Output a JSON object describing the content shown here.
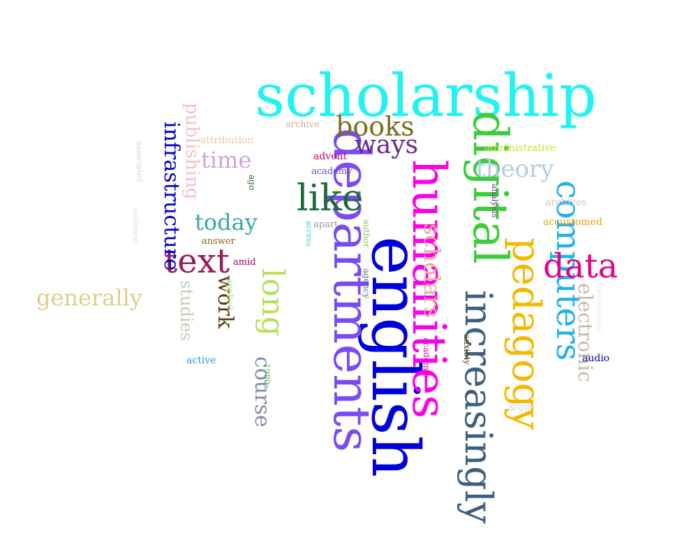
{
  "words": [
    {
      "text": "scholarship",
      "color": "#22f2f2",
      "orientation": "horizontal"
    },
    {
      "text": "english",
      "color": "#0000dd",
      "orientation": "vertical"
    },
    {
      "text": "departments",
      "color": "#7a4af2",
      "orientation": "vertical"
    },
    {
      "text": "humanities",
      "color": "#ff00e6",
      "orientation": "vertical"
    },
    {
      "text": "digital",
      "color": "#3dcc3d",
      "orientation": "vertical"
    },
    {
      "text": "increasingly",
      "color": "#3e5f80",
      "orientation": "vertical"
    },
    {
      "text": "pedagogy",
      "color": "#f5b800",
      "orientation": "vertical"
    },
    {
      "text": "computers",
      "color": "#1eb2f0",
      "orientation": "vertical"
    },
    {
      "text": "data",
      "color": "#e6008a",
      "orientation": "horizontal"
    },
    {
      "text": "like",
      "color": "#1f6b3a",
      "orientation": "horizontal"
    },
    {
      "text": "text",
      "color": "#9a1a5a",
      "orientation": "horizontal"
    },
    {
      "text": "long",
      "color": "#b8e05a",
      "orientation": "vertical"
    },
    {
      "text": "books",
      "color": "#7a6d1c",
      "orientation": "horizontal"
    },
    {
      "text": "ways",
      "color": "#6a2a8c",
      "orientation": "horizontal"
    },
    {
      "text": "theory",
      "color": "#b8cce0",
      "orientation": "horizontal"
    },
    {
      "text": "time",
      "color": "#c8a8d8",
      "orientation": "horizontal"
    },
    {
      "text": "today",
      "color": "#3aa8a0",
      "orientation": "horizontal"
    },
    {
      "text": "scholars",
      "color": "#e8b09a",
      "orientation": "vertical"
    },
    {
      "text": "course",
      "color": "#8a88b0",
      "orientation": "vertical"
    },
    {
      "text": "work",
      "color": "#5a3a10",
      "orientation": "vertical"
    },
    {
      "text": "studies",
      "color": "#c8c8b8",
      "orientation": "vertical"
    },
    {
      "text": "publishing",
      "color": "#f5c0c8",
      "orientation": "vertical"
    },
    {
      "text": "infrastructure",
      "color": "#0000cc",
      "orientation": "vertical"
    },
    {
      "text": "generally",
      "color": "#e0cc8a",
      "orientation": "horizontal"
    },
    {
      "text": "electronic",
      "color": "#c8b8a8",
      "orientation": "vertical"
    },
    {
      "text": "attribution",
      "color": "#e8cca0",
      "orientation": "horizontal"
    },
    {
      "text": "archive",
      "color": "#d8a890",
      "orientation": "horizontal"
    },
    {
      "text": "advent",
      "color": "#c0006a",
      "orientation": "horizontal"
    },
    {
      "text": "academy",
      "color": "#6a4ac0",
      "orientation": "horizontal"
    },
    {
      "text": "administrative",
      "color": "#c8e030",
      "orientation": "horizontal"
    },
    {
      "text": "archives",
      "color": "#d8c0c8",
      "orientation": "horizontal"
    },
    {
      "text": "accustomed",
      "color": "#f0a000",
      "orientation": "horizontal"
    },
    {
      "text": "apart",
      "color": "#9a90b0",
      "orientation": "horizontal"
    },
    {
      "text": "answer",
      "color": "#7a6a10",
      "orientation": "horizontal"
    },
    {
      "text": "amid",
      "color": "#a00060",
      "orientation": "horizontal"
    },
    {
      "text": "active",
      "color": "#2a9ad8",
      "orientation": "horizontal"
    },
    {
      "text": "audio",
      "color": "#0000aa",
      "orientation": "horizontal"
    },
    {
      "text": "argue",
      "color": "#d8d0d0",
      "orientation": "horizontal"
    },
    {
      "text": "analysis",
      "color": "#6a3a8a",
      "orientation": "vertical"
    },
    {
      "text": "ago",
      "color": "#1a6a2a",
      "orientation": "vertical"
    },
    {
      "text": "access",
      "color": "#30d8d0",
      "orientation": "vertical"
    },
    {
      "text": "author",
      "color": "#7ac850",
      "orientation": "vertical"
    },
    {
      "text": "agency",
      "color": "#5a6a9a",
      "orientation": "vertical"
    },
    {
      "text": "applied",
      "color": "#9ad860",
      "orientation": "vertical"
    },
    {
      "text": "1980s",
      "color": "#50b060",
      "orientation": "vertical"
    },
    {
      "text": "academic",
      "color": "#e000c0",
      "orientation": "vertical"
    },
    {
      "text": "anxiety",
      "color": "#5a4a10",
      "orientation": "vertical"
    },
    {
      "text": "associated",
      "color": "#d8d8d8",
      "orientation": "vertical"
    },
    {
      "text": "audience",
      "color": "#e8dcd0",
      "orientation": "vertical"
    },
    {
      "text": "associations",
      "color": "#f5e0e0",
      "orientation": "vertical"
    }
  ]
}
